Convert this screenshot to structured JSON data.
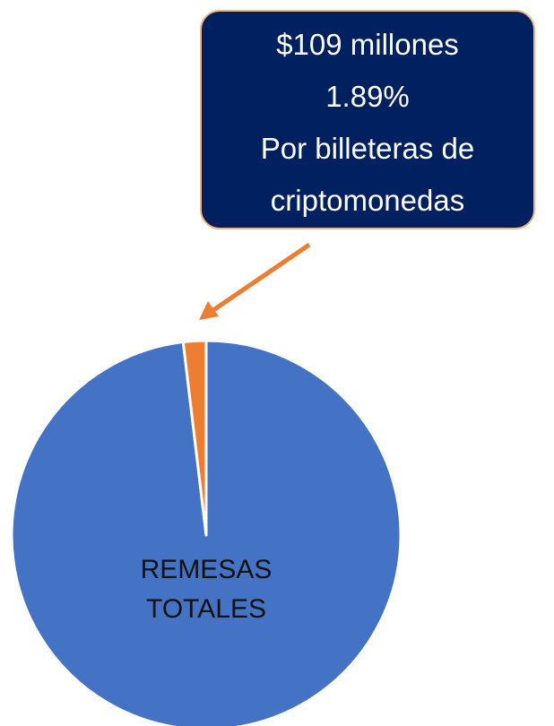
{
  "chart_data": {
    "type": "pie",
    "categories": [
      "REMESAS TOTALES",
      "Por billeteras de criptomonedas"
    ],
    "values": [
      98.11,
      1.89
    ],
    "value_labels": [
      null,
      "1.89%"
    ],
    "colors": [
      "#4472c4",
      "#ed7d31"
    ],
    "annotation": "$109 millones"
  }
}
